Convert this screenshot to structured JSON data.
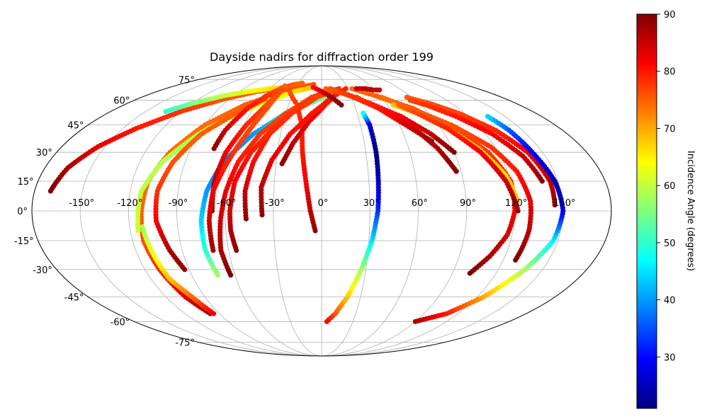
{
  "chart_data": {
    "type": "scatter",
    "projection": "mollweide",
    "title": "Dayside nadirs for diffraction order 199",
    "xticks": [
      "-150°",
      "-120°",
      "-90°",
      "-60°",
      "-30°",
      "0°",
      "30°",
      "60°",
      "90°",
      "120°",
      "150°"
    ],
    "yticks": [
      "75°",
      "60°",
      "45°",
      "30°",
      "15°",
      "0°",
      "-15°",
      "-30°",
      "-45°",
      "-60°",
      "-75°"
    ],
    "grid": true,
    "colorbar": {
      "label": "Incidence Angle (degrees)",
      "ticks": [
        "90",
        "80",
        "70",
        "60",
        "50",
        "40",
        "30"
      ],
      "range": [
        21,
        90
      ],
      "colormap": "jet"
    },
    "series": [
      {
        "points": [
          [
            -170,
            10,
            90
          ],
          [
            -165,
            22,
            87
          ],
          [
            -155,
            33,
            83
          ],
          [
            -140,
            43,
            80
          ],
          [
            -120,
            53,
            78
          ],
          [
            -95,
            61,
            76
          ],
          [
            -70,
            66,
            75
          ],
          [
            -45,
            69,
            75
          ]
        ]
      },
      {
        "points": [
          [
            -133,
            53,
            50
          ],
          [
            -120,
            58,
            55
          ],
          [
            -100,
            63,
            60
          ],
          [
            -80,
            66,
            63
          ],
          [
            -60,
            68,
            66
          ],
          [
            -40,
            69,
            68
          ]
        ]
      },
      {
        "points": [
          [
            -98,
            -55,
            88
          ],
          [
            -105,
            -45,
            84
          ],
          [
            -110,
            -30,
            79
          ],
          [
            -113,
            -15,
            76
          ],
          [
            -112,
            0,
            75
          ],
          [
            -110,
            15,
            74
          ],
          [
            -103,
            30,
            74
          ],
          [
            -90,
            45,
            74
          ],
          [
            -70,
            57,
            75
          ],
          [
            -45,
            65,
            76
          ],
          [
            -25,
            69,
            76
          ],
          [
            -10,
            71,
            76
          ]
        ]
      },
      {
        "points": [
          [
            -115,
            -10,
            61
          ],
          [
            -113,
            10,
            60
          ],
          [
            -105,
            25,
            59
          ],
          [
            -90,
            40,
            58
          ],
          [
            -70,
            52,
            60
          ],
          [
            -50,
            60,
            63
          ],
          [
            -30,
            66,
            66
          ],
          [
            -10,
            69,
            69
          ]
        ]
      },
      {
        "points": [
          [
            -112,
            -8,
            58
          ],
          [
            -110,
            -20,
            62
          ],
          [
            -107,
            -35,
            68
          ],
          [
            -100,
            -45,
            74
          ],
          [
            -95,
            -55,
            82
          ]
        ]
      },
      {
        "points": [
          [
            -93,
            -30,
            89
          ],
          [
            -98,
            -20,
            87
          ],
          [
            -103,
            -5,
            82
          ],
          [
            -103,
            10,
            78
          ],
          [
            -98,
            25,
            76
          ],
          [
            -88,
            40,
            75
          ],
          [
            -72,
            52,
            75
          ],
          [
            -55,
            61,
            76
          ]
        ]
      },
      {
        "points": [
          [
            -72,
            -33,
            58
          ],
          [
            -75,
            -20,
            50
          ],
          [
            -75,
            -5,
            44
          ],
          [
            -72,
            10,
            40
          ],
          [
            -65,
            25,
            38
          ],
          [
            -50,
            40,
            40
          ],
          [
            -30,
            52,
            46
          ],
          [
            -5,
            60,
            53
          ],
          [
            15,
            65,
            58
          ]
        ]
      },
      {
        "points": [
          [
            -63,
            -33,
            90
          ],
          [
            -65,
            -20,
            87
          ],
          [
            -63,
            -5,
            85
          ],
          [
            -60,
            10,
            83
          ],
          [
            -55,
            25,
            80
          ],
          [
            -45,
            40,
            78
          ],
          [
            -30,
            52,
            77
          ],
          [
            -10,
            62,
            77
          ],
          [
            10,
            67,
            77
          ]
        ]
      },
      {
        "points": [
          [
            -55,
            -20,
            89
          ],
          [
            -57,
            -10,
            87
          ],
          [
            -57,
            0,
            84
          ],
          [
            -55,
            15,
            82
          ],
          [
            -48,
            30,
            80
          ],
          [
            -35,
            45,
            78
          ],
          [
            -18,
            57,
            78
          ],
          [
            0,
            64,
            78
          ],
          [
            20,
            68,
            78
          ]
        ]
      },
      {
        "points": [
          [
            -47,
            -4,
            89
          ],
          [
            -48,
            10,
            85
          ],
          [
            -45,
            25,
            81
          ],
          [
            -38,
            40,
            79
          ],
          [
            -25,
            52,
            78
          ],
          [
            -5,
            62,
            77
          ],
          [
            15,
            67,
            77
          ]
        ]
      },
      {
        "points": [
          [
            -68,
            0,
            89
          ],
          [
            -68,
            15,
            86
          ],
          [
            -65,
            30,
            82
          ],
          [
            -58,
            45,
            79
          ],
          [
            -50,
            57,
            77
          ],
          [
            -45,
            66,
            77
          ]
        ]
      },
      {
        "points": [
          [
            -70,
            -20,
            88
          ],
          [
            -70,
            -5,
            85
          ],
          [
            -68,
            10,
            82
          ],
          [
            -62,
            25,
            79
          ],
          [
            -55,
            40,
            77
          ],
          [
            -48,
            55,
            76
          ],
          [
            -45,
            65,
            76
          ]
        ]
      },
      {
        "points": [
          [
            -74,
            32,
            89
          ],
          [
            -72,
            42,
            85
          ],
          [
            -65,
            55,
            80
          ],
          [
            -55,
            64,
            78
          ],
          [
            -45,
            69,
            76
          ],
          [
            -35,
            71,
            75
          ],
          [
            -25,
            72,
            75
          ]
        ]
      },
      {
        "points": [
          [
            -4,
            -10,
            89
          ],
          [
            -7,
            0,
            86
          ],
          [
            -10,
            15,
            82
          ],
          [
            -13,
            30,
            80
          ],
          [
            -15,
            45,
            79
          ],
          [
            -22,
            57,
            78
          ],
          [
            -35,
            66,
            76
          ],
          [
            -45,
            70,
            75
          ]
        ]
      },
      {
        "points": [
          [
            -26,
            24,
            89
          ],
          [
            -20,
            35,
            86
          ],
          [
            -10,
            47,
            83
          ],
          [
            3,
            57,
            81
          ],
          [
            15,
            64,
            80
          ]
        ]
      },
      {
        "points": [
          [
            -37,
            -2,
            89
          ],
          [
            -38,
            12,
            86
          ],
          [
            -33,
            26,
            83
          ],
          [
            -23,
            40,
            81
          ],
          [
            -8,
            52,
            80
          ],
          [
            10,
            62,
            80
          ],
          [
            28,
            68,
            79
          ]
        ]
      },
      {
        "points": [
          [
            5,
            -60,
            82
          ],
          [
            12,
            -55,
            76
          ],
          [
            20,
            -45,
            68
          ],
          [
            27,
            -30,
            58
          ],
          [
            32,
            -15,
            45
          ],
          [
            35,
            0,
            33
          ],
          [
            36,
            15,
            25
          ],
          [
            37,
            30,
            21
          ],
          [
            37,
            45,
            26
          ],
          [
            35,
            52,
            48
          ]
        ]
      },
      {
        "points": [
          [
            18,
            57,
            90
          ],
          [
            10,
            62,
            88
          ],
          [
            0,
            66,
            84
          ],
          [
            -10,
            69,
            81
          ]
        ]
      },
      {
        "points": [
          [
            90,
            30,
            90
          ],
          [
            80,
            40,
            86
          ],
          [
            65,
            50,
            82
          ],
          [
            45,
            58,
            79
          ],
          [
            25,
            64,
            77
          ],
          [
            5,
            68,
            75
          ]
        ]
      },
      {
        "points": [
          [
            87,
            20,
            90
          ],
          [
            80,
            32,
            87
          ],
          [
            68,
            45,
            83
          ],
          [
            50,
            55,
            80
          ],
          [
            30,
            63,
            78
          ],
          [
            10,
            68,
            76
          ]
        ]
      },
      {
        "points": [
          [
            78,
            36,
            88
          ],
          [
            65,
            45,
            84
          ],
          [
            50,
            55,
            80
          ],
          [
            35,
            62,
            78
          ]
        ]
      },
      {
        "points": [
          [
            102,
            -32,
            90
          ],
          [
            110,
            -23,
            87
          ],
          [
            117,
            -12,
            84
          ],
          [
            120,
            0,
            82
          ],
          [
            120,
            15,
            80
          ],
          [
            113,
            30,
            78
          ],
          [
            100,
            42,
            77
          ],
          [
            80,
            55,
            76
          ],
          [
            55,
            63,
            75
          ],
          [
            35,
            68,
            74
          ]
        ]
      },
      {
        "points": [
          [
            128,
            -25,
            90
          ],
          [
            130,
            -10,
            86
          ],
          [
            130,
            5,
            83
          ],
          [
            126,
            20,
            80
          ],
          [
            117,
            33,
            78
          ],
          [
            100,
            45,
            76
          ],
          [
            78,
            55,
            75
          ],
          [
            60,
            62,
            74
          ]
        ]
      },
      {
        "points": [
          [
            122,
            5,
            68
          ],
          [
            118,
            18,
            67
          ],
          [
            108,
            32,
            67
          ],
          [
            95,
            43,
            67
          ],
          [
            80,
            52,
            67
          ],
          [
            65,
            57,
            68
          ]
        ]
      },
      {
        "points": [
          [
            122,
            0,
            88
          ],
          [
            117,
            15,
            85
          ],
          [
            108,
            30,
            82
          ],
          [
            95,
            43,
            79
          ],
          [
            80,
            52,
            77
          ],
          [
            70,
            57,
            75
          ]
        ]
      },
      {
        "points": [
          [
            145,
            3,
            89
          ],
          [
            145,
            15,
            86
          ],
          [
            140,
            30,
            82
          ],
          [
            130,
            42,
            79
          ],
          [
            115,
            52,
            77
          ],
          [
            100,
            58,
            76
          ],
          [
            85,
            62,
            75
          ]
        ]
      },
      {
        "points": [
          [
            140,
            15,
            89
          ],
          [
            135,
            28,
            85
          ],
          [
            125,
            40,
            82
          ],
          [
            110,
            50,
            80
          ],
          [
            95,
            57,
            78
          ],
          [
            85,
            60,
            77
          ]
        ]
      },
      {
        "points": [
          [
            90,
            -60,
            87
          ],
          [
            110,
            -55,
            80
          ],
          [
            125,
            -45,
            70
          ],
          [
            138,
            -30,
            58
          ],
          [
            147,
            -15,
            46
          ],
          [
            150,
            0,
            28
          ],
          [
            148,
            15,
            24
          ],
          [
            143,
            30,
            29
          ],
          [
            140,
            42,
            35
          ],
          [
            136,
            50,
            44
          ]
        ]
      },
      {
        "points": [
          [
            40,
            68,
            85
          ],
          [
            50,
            68,
            86
          ],
          [
            58,
            67,
            86
          ],
          [
            65,
            67,
            85
          ]
        ]
      }
    ]
  }
}
